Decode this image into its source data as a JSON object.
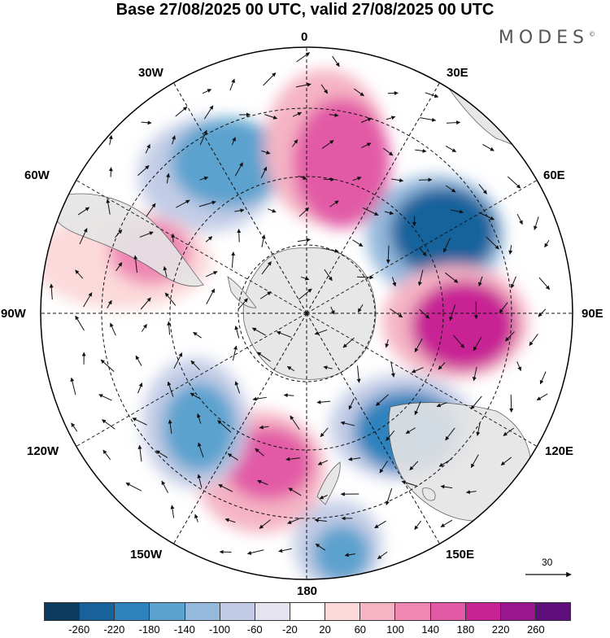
{
  "title": "Base 27/08/2025 00 UTC, valid 27/08/2025 00 UTC",
  "brand": "MODES",
  "brand_mark": "©",
  "map": {
    "longitude_labels": [
      "0",
      "30E",
      "60E",
      "90E",
      "120E",
      "150E",
      "180",
      "150W",
      "120W",
      "90W",
      "60W",
      "30W"
    ],
    "reference_vector": "30",
    "anomaly_systems": [
      {
        "name": "negative-center-south-atlantic",
        "sign": "negative",
        "magnitude": 140
      },
      {
        "name": "positive-center-north",
        "sign": "positive",
        "magnitude": 140
      },
      {
        "name": "negative-center-east",
        "sign": "negative",
        "magnitude": 240
      },
      {
        "name": "positive-center-east",
        "sign": "positive",
        "magnitude": 180
      },
      {
        "name": "negative-center-southeast",
        "sign": "negative",
        "magnitude": 180
      },
      {
        "name": "positive-center-southwest",
        "sign": "positive",
        "magnitude": 140
      },
      {
        "name": "negative-center-west",
        "sign": "negative",
        "magnitude": 140
      },
      {
        "name": "positive-center-west",
        "sign": "positive",
        "magnitude": 120
      },
      {
        "name": "negative-center-bottom",
        "sign": "negative",
        "magnitude": 140
      }
    ]
  },
  "colorbar": {
    "colors": [
      "#0b3b5e",
      "#17629b",
      "#2f82bd",
      "#5ca2ce",
      "#95b9dc",
      "#c2cce6",
      "#e6e3f0",
      "#ffffff",
      "#fbd9da",
      "#f5b4c4",
      "#ef87b3",
      "#e25aa6",
      "#c82395",
      "#9a168f",
      "#5e0f7c"
    ],
    "tick_labels": [
      "-260",
      "-220",
      "-180",
      "-140",
      "-100",
      "-60",
      "-20",
      "20",
      "60",
      "100",
      "140",
      "180",
      "220",
      "260"
    ]
  }
}
